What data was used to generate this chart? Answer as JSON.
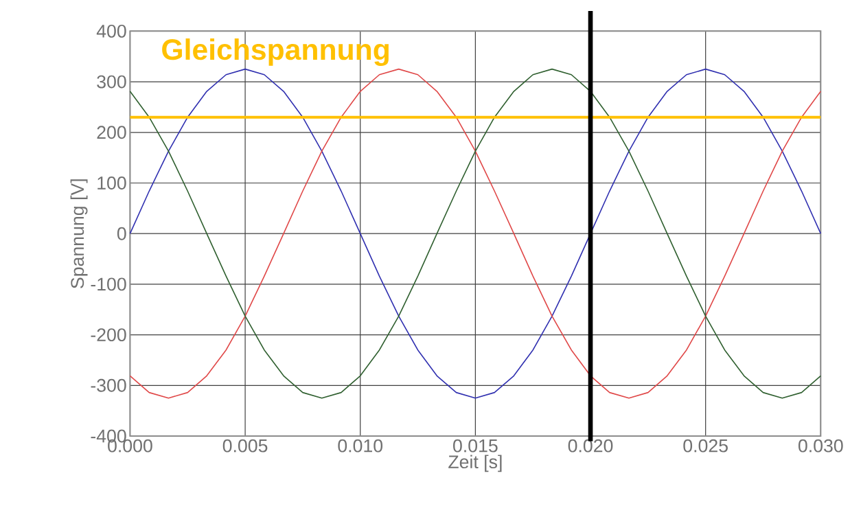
{
  "chart_data": {
    "type": "line",
    "xlabel": "Zeit [s]",
    "ylabel": "Spannung [V]",
    "x": [
      0,
      0.00083,
      0.00167,
      0.0025,
      0.00333,
      0.00417,
      0.005,
      0.00583,
      0.00667,
      0.0075,
      0.00833,
      0.00917,
      0.01,
      0.01083,
      0.01167,
      0.0125,
      0.01333,
      0.01417,
      0.015,
      0.01583,
      0.01667,
      0.0175,
      0.01833,
      0.01917,
      0.02,
      0.02083,
      0.02167,
      0.0225,
      0.02333,
      0.02417,
      0.025,
      0.02583,
      0.02667,
      0.0275,
      0.02833,
      0.02917,
      0.03
    ],
    "series": [
      {
        "color": "#3030b0",
        "values": [
          0,
          84,
          163,
          230,
          281,
          314,
          325,
          314,
          281,
          230,
          163,
          84,
          0,
          -84,
          -163,
          -230,
          -281,
          -314,
          -325,
          -314,
          -281,
          -230,
          -163,
          -84,
          0,
          84,
          163,
          230,
          281,
          314,
          325,
          314,
          281,
          230,
          163,
          84,
          0
        ]
      },
      {
        "color": "#e04848",
        "values": [
          -281,
          -314,
          -325,
          -314,
          -281,
          -230,
          -163,
          -84,
          0,
          84,
          163,
          230,
          281,
          314,
          325,
          314,
          281,
          230,
          163,
          84,
          0,
          -84,
          -163,
          -230,
          -281,
          -314,
          -325,
          -314,
          -281,
          -230,
          -163,
          -84,
          0,
          84,
          163,
          230,
          281
        ]
      },
      {
        "color": "#306030",
        "values": [
          281,
          230,
          163,
          84,
          0,
          -84,
          -163,
          -230,
          -281,
          -314,
          -325,
          -314,
          -281,
          -230,
          -163,
          -84,
          0,
          84,
          163,
          230,
          281,
          314,
          325,
          314,
          281,
          230,
          163,
          84,
          0,
          -84,
          -163,
          -230,
          -281,
          -314,
          -325,
          -314,
          -281
        ]
      }
    ],
    "xlim": [
      0,
      0.03
    ],
    "ylim": [
      -400,
      400
    ],
    "xticks": [
      {
        "value": 0,
        "label": "0.000"
      },
      {
        "value": 0.005,
        "label": "0.005"
      },
      {
        "value": 0.01,
        "label": "0.010"
      },
      {
        "value": 0.015,
        "label": "0.015"
      },
      {
        "value": 0.02,
        "label": "0.020"
      },
      {
        "value": 0.025,
        "label": "0.025"
      },
      {
        "value": 0.03,
        "label": "0.030"
      }
    ],
    "yticks": [
      -400,
      -300,
      -200,
      -100,
      0,
      100,
      200,
      300,
      400
    ],
    "grid": true,
    "ref_lines": [
      {
        "axis": "y",
        "value": 230,
        "label": "Gleichspannung",
        "color": "#ffc000"
      },
      {
        "axis": "x",
        "value": 0.02,
        "color": "#000000"
      }
    ]
  }
}
